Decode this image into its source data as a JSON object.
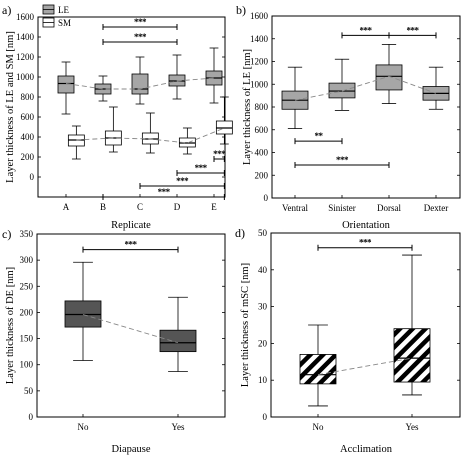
{
  "chart_data": [
    {
      "panel": "a)",
      "type": "box",
      "xlabel": "Replicate",
      "ylabel": "Layer thickness of LE and SM [nm]",
      "ylim": [
        -200,
        1600
      ],
      "yticks": [
        0,
        200,
        400,
        600,
        800,
        1000,
        1200,
        1400,
        1600
      ],
      "ytick_labels": [
        "0",
        "200",
        "400",
        "600",
        "800",
        "1000",
        "1200",
        "1400",
        "1600"
      ],
      "categories": [
        "A",
        "B",
        "C",
        "D",
        "E"
      ],
      "legend": [
        {
          "label": "LE",
          "fill": "#a6a6a6"
        },
        {
          "label": "SM",
          "fill": "#ffffff"
        }
      ],
      "series": [
        {
          "name": "LE",
          "offset": 0,
          "fill": "#a6a6a6",
          "boxes": [
            {
              "min": 630,
              "q1": 840,
              "median": 935,
              "q3": 1010,
              "max": 1150
            },
            {
              "min": 760,
              "q1": 830,
              "median": 880,
              "q3": 930,
              "max": 1010
            },
            {
              "min": 730,
              "q1": 830,
              "median": 880,
              "q3": 1030,
              "max": 1200
            },
            {
              "min": 780,
              "q1": 910,
              "median": 960,
              "q3": 1020,
              "max": 1220
            },
            {
              "min": 740,
              "q1": 920,
              "median": 990,
              "q3": 1060,
              "max": 1290
            }
          ]
        },
        {
          "name": "SM",
          "offset": 0.28,
          "fill": "#ffffff",
          "boxes": [
            {
              "min": 180,
              "q1": 310,
              "median": 370,
              "q3": 420,
              "max": 510
            },
            {
              "min": 250,
              "q1": 320,
              "median": 390,
              "q3": 460,
              "max": 700
            },
            {
              "min": 240,
              "q1": 330,
              "median": 380,
              "q3": 440,
              "max": 640
            },
            {
              "min": 230,
              "q1": 300,
              "median": 340,
              "q3": 390,
              "max": 490
            },
            {
              "min": 330,
              "q1": 430,
              "median": 490,
              "q3": 560,
              "max": 800
            }
          ]
        }
      ],
      "significance": [
        {
          "label": "***",
          "x1": 1,
          "x2": 3,
          "y": 1500
        },
        {
          "label": "***",
          "x1": 1,
          "x2": 3,
          "y": 1350
        },
        {
          "label": "***",
          "x1": 4,
          "x2": 4.28,
          "y": 180
        },
        {
          "label": "***",
          "x1": 3,
          "x2": 4.28,
          "y": 40
        },
        {
          "label": "***",
          "x1": 2,
          "x2": 4.28,
          "y": -90
        },
        {
          "label": "***",
          "x1": 1,
          "x2": 4.28,
          "y": -200
        }
      ]
    },
    {
      "panel": "b)",
      "type": "box",
      "xlabel": "Orientation",
      "ylabel": "Layer thickness of LE [nm]",
      "ylim": [
        0,
        1600
      ],
      "yticks": [
        0,
        200,
        400,
        600,
        800,
        1000,
        1200,
        1400,
        1600
      ],
      "ytick_labels": [
        "0",
        "200",
        "400",
        "600",
        "800",
        "1000",
        "1200",
        "1400",
        "1600"
      ],
      "categories": [
        "Ventral",
        "Sinister",
        "Dorsal",
        "Dexter"
      ],
      "series": [
        {
          "name": "LE",
          "offset": 0,
          "fill": "#a6a6a6",
          "boxes": [
            {
              "min": 610,
              "q1": 780,
              "median": 860,
              "q3": 940,
              "max": 1150
            },
            {
              "min": 770,
              "q1": 880,
              "median": 940,
              "q3": 1010,
              "max": 1220
            },
            {
              "min": 830,
              "q1": 950,
              "median": 1070,
              "q3": 1170,
              "max": 1350
            },
            {
              "min": 780,
              "q1": 860,
              "median": 920,
              "q3": 980,
              "max": 1150
            }
          ]
        }
      ],
      "significance": [
        {
          "label": "***",
          "x1": 1,
          "x2": 2,
          "y": 1430
        },
        {
          "label": "***",
          "x1": 2,
          "x2": 3,
          "y": 1430
        },
        {
          "label": "**",
          "x1": 0,
          "x2": 1,
          "y": 500
        },
        {
          "label": "***",
          "x1": 0,
          "x2": 2,
          "y": 290
        }
      ]
    },
    {
      "panel": "c)",
      "type": "box",
      "xlabel": "Diapause",
      "ylabel": "Layer thickness of DE [nm]",
      "ylim": [
        0,
        350
      ],
      "yticks": [
        0,
        50,
        100,
        150,
        200,
        250,
        300,
        350
      ],
      "ytick_labels": [
        "0",
        "50",
        "100",
        "150",
        "200",
        "250",
        "300",
        "350"
      ],
      "categories": [
        "No",
        "Yes"
      ],
      "series": [
        {
          "name": "DE",
          "offset": 0,
          "fill": "#555555",
          "boxes": [
            {
              "min": 108,
              "q1": 172,
              "median": 196,
              "q3": 222,
              "max": 296
            },
            {
              "min": 87,
              "q1": 125,
              "median": 142,
              "q3": 166,
              "max": 229
            }
          ]
        }
      ],
      "significance": [
        {
          "label": "***",
          "x1": 0,
          "x2": 1,
          "y": 320
        }
      ]
    },
    {
      "panel": "d)",
      "type": "box",
      "xlabel": "Acclimation",
      "ylabel": "Layer thickness of mSC [nm]",
      "ylim": [
        0,
        50
      ],
      "yticks": [
        0,
        10,
        20,
        30,
        40,
        50
      ],
      "ytick_labels": [
        "0",
        "10",
        "20",
        "30",
        "40",
        "50"
      ],
      "categories": [
        "No",
        "Yes"
      ],
      "series": [
        {
          "name": "mSC",
          "offset": 0,
          "fill": "hatch",
          "boxes": [
            {
              "min": 3,
              "q1": 9,
              "median": 11.5,
              "q3": 17,
              "max": 25
            },
            {
              "min": 6,
              "q1": 9.5,
              "median": 16,
              "q3": 24,
              "max": 44
            }
          ]
        }
      ],
      "significance": [
        {
          "label": "***",
          "x1": 0,
          "x2": 1,
          "y": 46
        }
      ]
    }
  ]
}
